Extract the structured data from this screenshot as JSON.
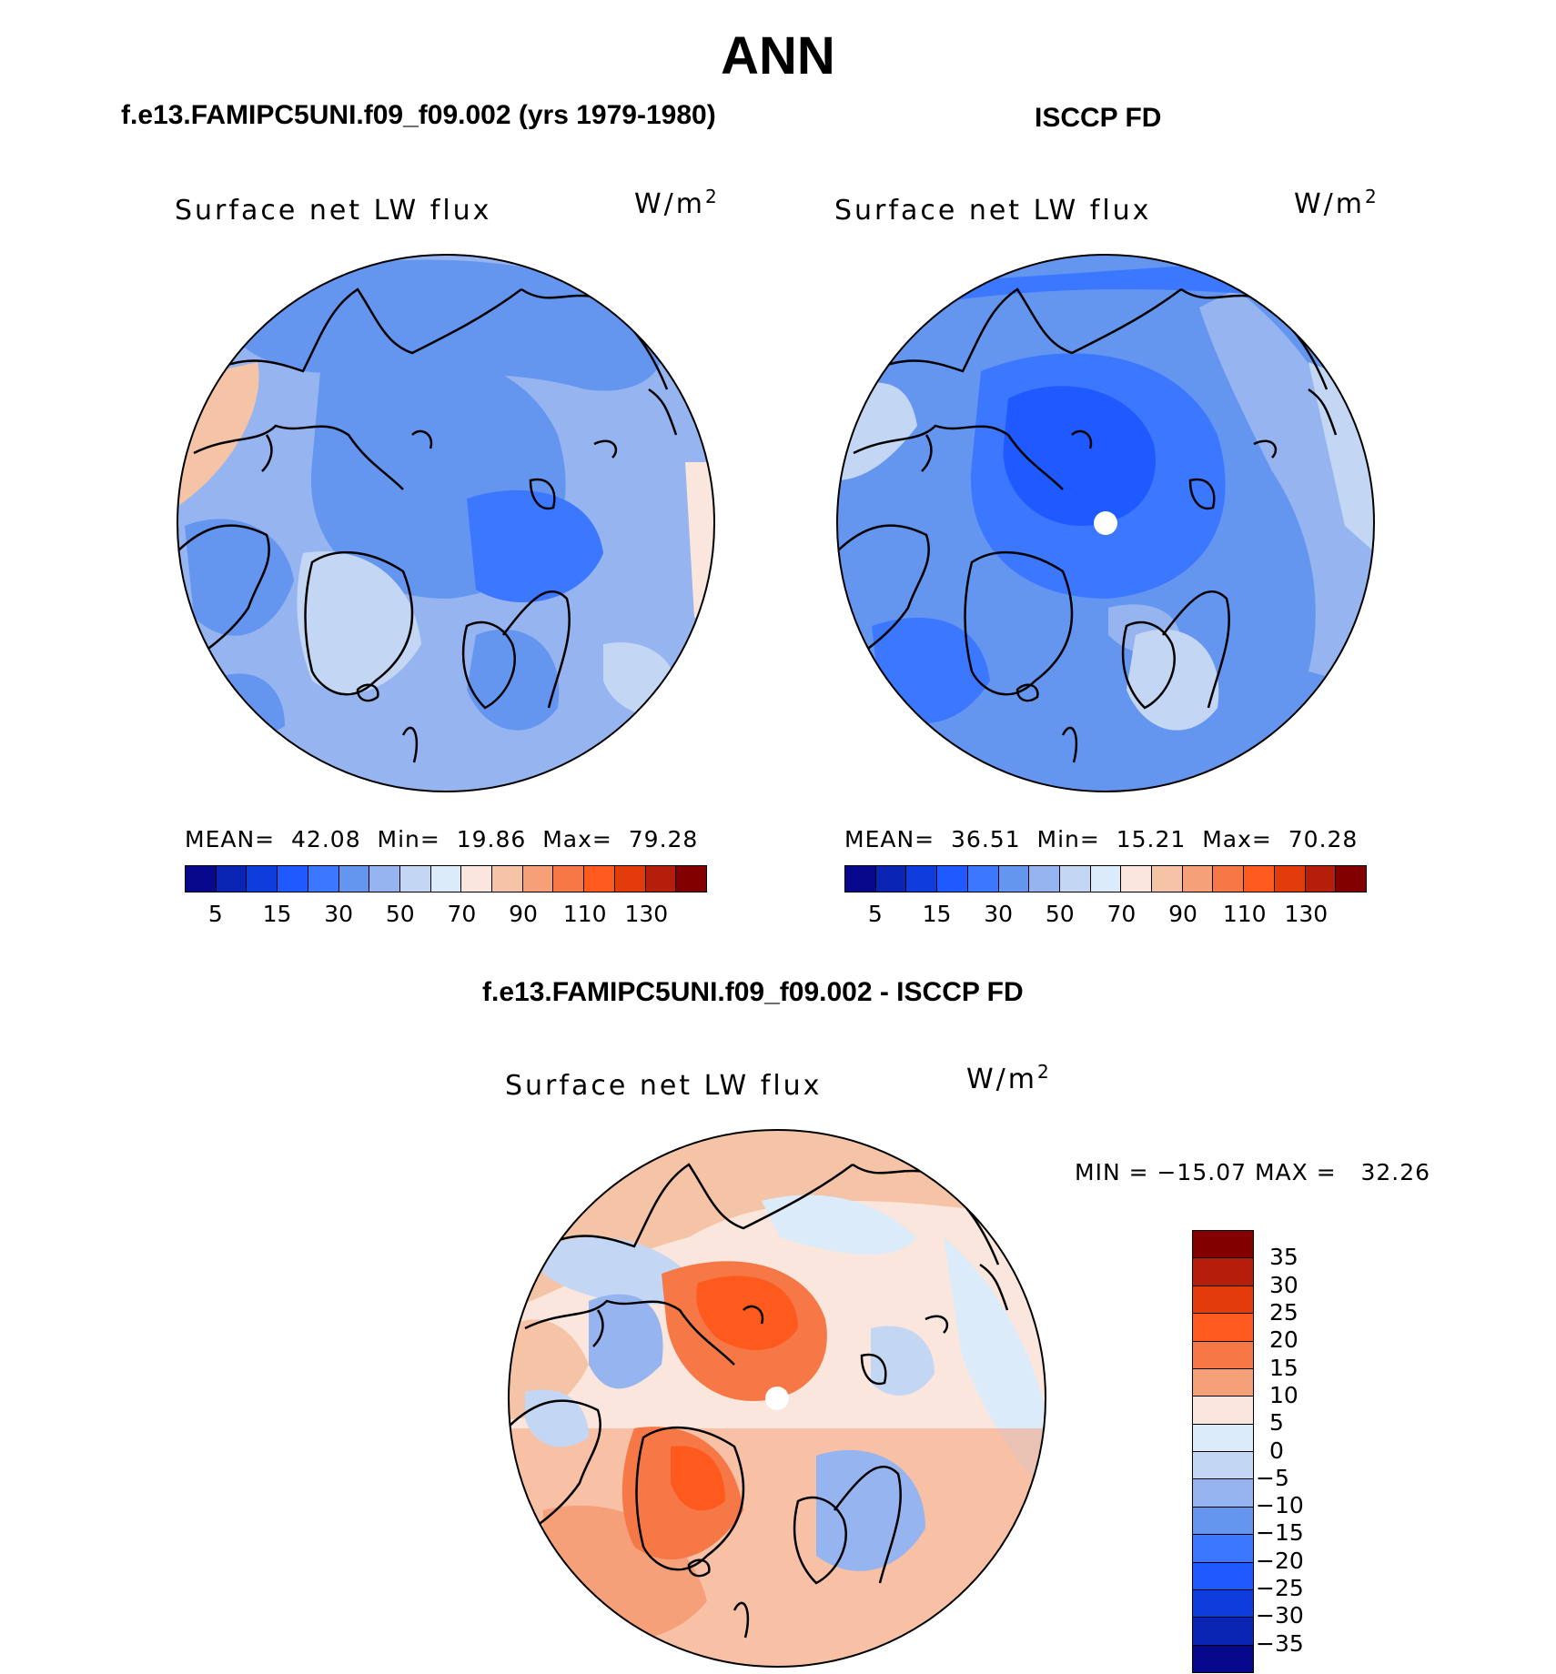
{
  "title": "ANN",
  "panels": {
    "left": {
      "title": "f.e13.FAMIPC5UNI.f09_f09.002 (yrs 1979-1980)",
      "variable": "Surface net LW flux",
      "units_base": "W/m",
      "units_exp": "2",
      "mean_label": "MEAN=",
      "mean": "42.08",
      "min_label": "Min=",
      "min": "19.86",
      "max_label": "Max=",
      "max": "79.28"
    },
    "right": {
      "title": "ISCCP FD",
      "variable": "Surface net LW flux",
      "units_base": "W/m",
      "units_exp": "2",
      "mean_label": "MEAN=",
      "mean": "36.51",
      "min_label": "Min=",
      "min": "15.21",
      "max_label": "Max=",
      "max": "70.28"
    },
    "diff": {
      "title": "f.e13.FAMIPC5UNI.f09_f09.002 - ISCCP FD",
      "variable": "Surface net LW flux",
      "units_base": "W/m",
      "units_exp": "2",
      "minmax_text": "MIN = −15.07 MAX =   32.26"
    }
  },
  "colorbar_abs": {
    "colors": [
      "#08088c",
      "#0a24b4",
      "#0f3cdc",
      "#1e5aff",
      "#3c78ff",
      "#6496f0",
      "#96b4f0",
      "#c3d7f5",
      "#dcebfa",
      "#fae6dc",
      "#f5c3a5",
      "#f5a078",
      "#f57846",
      "#ff5a1e",
      "#e13c0a",
      "#b41e0a",
      "#820000"
    ],
    "ticks": [
      "5",
      "15",
      "30",
      "50",
      "70",
      "90",
      "110",
      "130"
    ],
    "tick_boundaries": [
      1,
      3,
      5,
      7,
      9,
      11,
      13,
      15
    ]
  },
  "colorbar_diff": {
    "colors": [
      "#820000",
      "#b41e0a",
      "#e13c0a",
      "#ff5a1e",
      "#f57846",
      "#f5a078",
      "#fae6dc",
      "#dcebfa",
      "#c3d7f5",
      "#96b4f0",
      "#6496f0",
      "#3c78ff",
      "#1e5aff",
      "#0f3cdc",
      "#0a24b4",
      "#08088c"
    ],
    "ticks": [
      "35",
      "30",
      "25",
      "20",
      "15",
      "10",
      "5",
      "0",
      "−5",
      "−10",
      "−15",
      "−20",
      "−25",
      "−30",
      "−35"
    ]
  },
  "legend": {
    "colorbar_abs": "5 to 130 W/m2, blue to red",
    "colorbar_diff": "-35 to 35 W/m2, blue to red"
  }
}
